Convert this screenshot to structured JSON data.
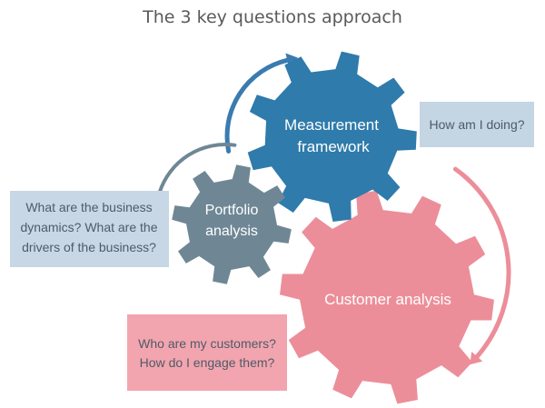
{
  "title": "The 3 key questions approach",
  "gears": {
    "measurement": {
      "line1": "Measurement",
      "line2": "framework",
      "color": "#2f7bab"
    },
    "portfolio": {
      "line1": "Portfolio",
      "line2": "analysis",
      "color": "#6f8795"
    },
    "customer": {
      "line1": "Customer analysis",
      "color": "#ec8e99"
    }
  },
  "questions": {
    "measurement": {
      "line1": "How am I doing?",
      "color": "#c4d5e3"
    },
    "portfolio": {
      "line1": "What are the business",
      "line2": "dynamics? What are the",
      "line3": "drivers of the business?",
      "color": "#c7d7e5"
    },
    "customer": {
      "line1": "Who are my customers?",
      "line2": "How do I engage them?",
      "color": "#f2a5ae"
    }
  },
  "colors": {
    "arrow_blue": "#3a7bb0",
    "arrow_slate": "#6f8795",
    "arrow_pink": "#ec8e99",
    "box_text": "#4f5a6a"
  }
}
